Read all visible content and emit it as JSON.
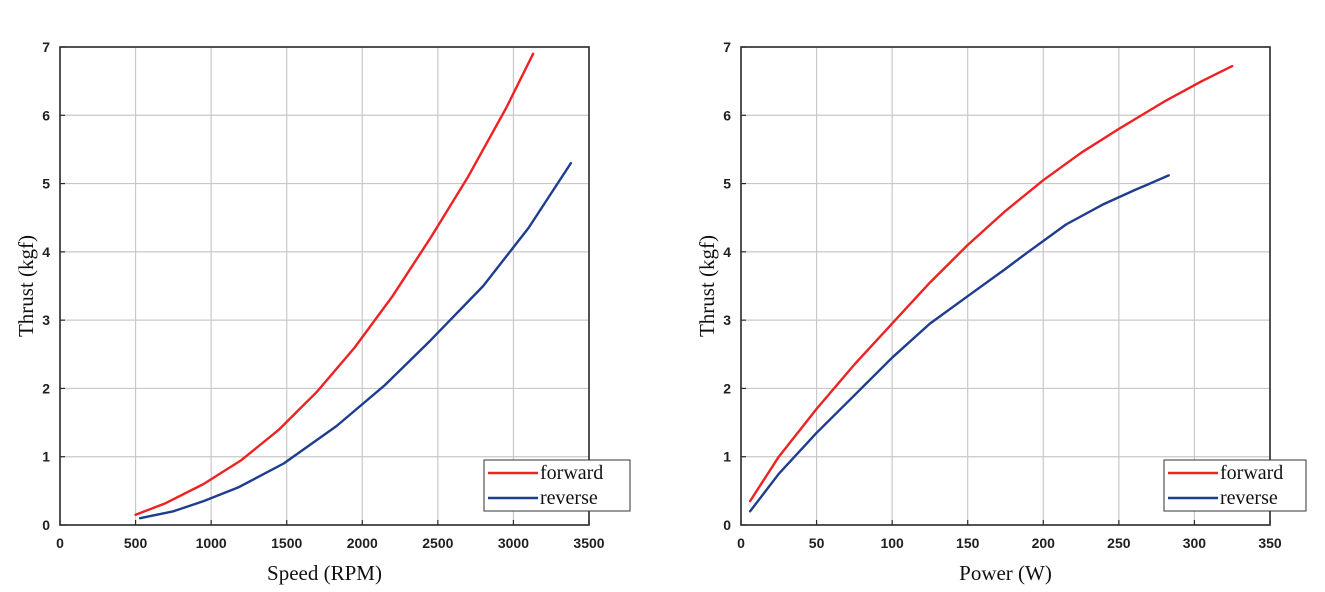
{
  "chart_data": [
    {
      "type": "line",
      "xlabel": "Speed (RPM)",
      "ylabel": "Thrust (kgf)",
      "xlim": [
        0,
        3500
      ],
      "ylim": [
        0,
        7
      ],
      "xticks": [
        0,
        500,
        1000,
        1500,
        2000,
        2500,
        3000,
        3500
      ],
      "yticks": [
        0,
        1,
        2,
        3,
        4,
        5,
        6,
        7
      ],
      "grid": true,
      "legend_position": "bottom-right",
      "series": [
        {
          "name": "forward",
          "color": "#ee2222",
          "x": [
            500,
            700,
            950,
            1200,
            1450,
            1700,
            1950,
            2200,
            2450,
            2700,
            2950,
            3130
          ],
          "y": [
            0.15,
            0.32,
            0.6,
            0.95,
            1.4,
            1.95,
            2.6,
            3.35,
            4.2,
            5.1,
            6.1,
            6.9
          ]
        },
        {
          "name": "reverse",
          "color": "#1f3d8f",
          "x": [
            530,
            750,
            950,
            1180,
            1480,
            1830,
            2150,
            2450,
            2800,
            3100,
            3380
          ],
          "y": [
            0.1,
            0.2,
            0.35,
            0.55,
            0.9,
            1.45,
            2.05,
            2.7,
            3.5,
            4.35,
            5.3
          ]
        }
      ]
    },
    {
      "type": "line",
      "xlabel": "Power (W)",
      "ylabel": "Thrust (kgf)",
      "xlim": [
        0,
        350
      ],
      "ylim": [
        0,
        7
      ],
      "xticks": [
        0,
        50,
        100,
        150,
        200,
        250,
        300,
        350
      ],
      "yticks": [
        0,
        1,
        2,
        3,
        4,
        5,
        6,
        7
      ],
      "grid": true,
      "legend_position": "bottom-right",
      "series": [
        {
          "name": "forward",
          "color": "#ee2222",
          "x": [
            6,
            25,
            50,
            75,
            100,
            125,
            150,
            175,
            200,
            225,
            250,
            280,
            305,
            325
          ],
          "y": [
            0.35,
            1.0,
            1.7,
            2.35,
            2.95,
            3.55,
            4.1,
            4.6,
            5.05,
            5.45,
            5.8,
            6.2,
            6.5,
            6.72
          ]
        },
        {
          "name": "reverse",
          "color": "#1f3d8f",
          "x": [
            6,
            25,
            50,
            75,
            100,
            125,
            150,
            175,
            190,
            215,
            240,
            260,
            283
          ],
          "y": [
            0.2,
            0.75,
            1.35,
            1.9,
            2.45,
            2.95,
            3.35,
            3.75,
            4.0,
            4.4,
            4.7,
            4.9,
            5.12
          ]
        }
      ]
    }
  ]
}
